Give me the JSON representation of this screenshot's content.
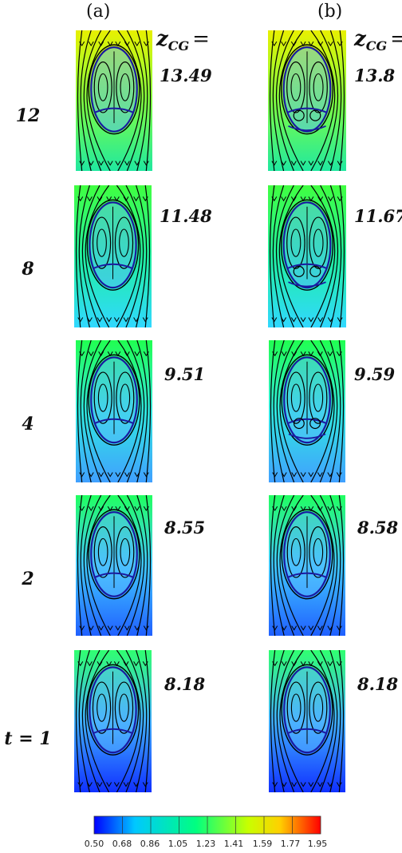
{
  "columns": [
    {
      "label": "(a)"
    },
    {
      "label": "(b)"
    }
  ],
  "z_heading": {
    "symbol": "z",
    "sub": "CG",
    "eq": "="
  },
  "time_labels": [
    "12",
    "8",
    "4",
    "2",
    "t = 1"
  ],
  "z_values": {
    "a": [
      "13.49",
      "11.48",
      "9.51",
      "8.55",
      "8.18"
    ],
    "b": [
      "13.8",
      "11.67",
      "9.59",
      "8.58",
      "8.18"
    ]
  },
  "colorbar": {
    "ticks": [
      "0.50",
      "0.68",
      "0.86",
      "1.05",
      "1.23",
      "1.41",
      "1.59",
      "1.77",
      "1.95"
    ],
    "colors": [
      "#0000ff",
      "#00c8ff",
      "#00ff80",
      "#c8ff00",
      "#ffd000",
      "#ff0000"
    ]
  }
}
